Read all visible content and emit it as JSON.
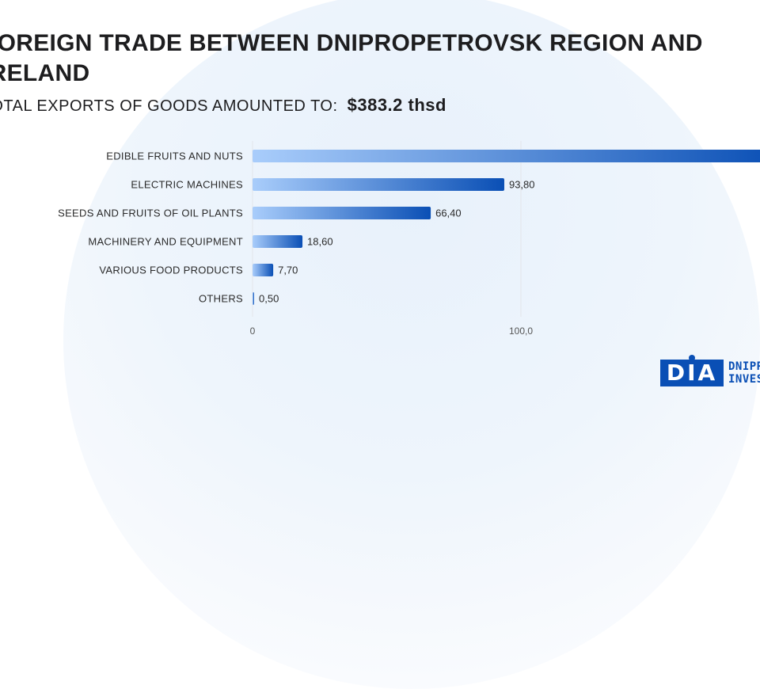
{
  "header": {
    "title": "FOREIGN TRADE BETWEEN DNIPROPETROVSK REGION AND IRELAND",
    "subtitle_prefix": "TOTAL EXPORTS OF GOODS AMOUNTED TO:",
    "subtitle_amount": "$383.2 thsd"
  },
  "chart_data": {
    "type": "bar",
    "orientation": "horizontal",
    "categories": [
      "EDIBLE FRUITS AND NUTS",
      "ELECTRIC MACHINES",
      "SEEDS AND FRUITS OF OIL PLANTS",
      "MACHINERY AND EQUIPMENT",
      "VARIOUS FOOD PRODUCTS",
      "OTHERS"
    ],
    "values": [
      196.2,
      93.8,
      66.4,
      18.6,
      7.7,
      0.5
    ],
    "value_labels": [
      "",
      "93,80",
      "66,40",
      "18,60",
      "7,70",
      "0,50"
    ],
    "x_ticks": [
      0,
      100
    ],
    "x_tick_labels": [
      "0",
      "100,0"
    ],
    "xlim": [
      0,
      200
    ],
    "grid": true,
    "colors": {
      "bar_start": "#a9cdfb",
      "bar_end": "#0a4fb5",
      "grid": "#e3e6ea"
    }
  },
  "logo": {
    "mark": "DIA",
    "line1": "DNIPRO",
    "line2": "INVEST"
  }
}
